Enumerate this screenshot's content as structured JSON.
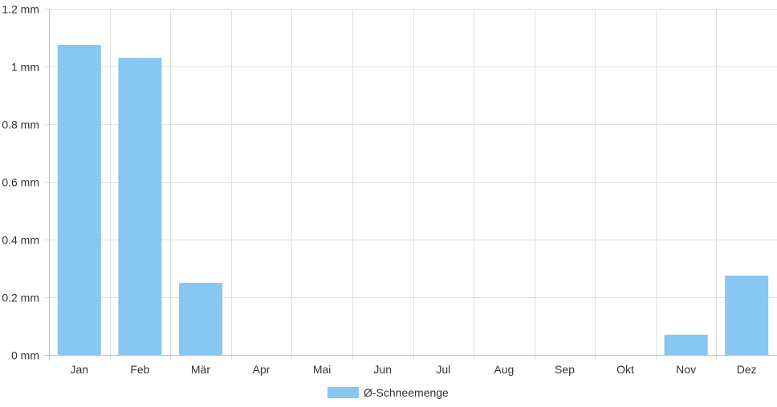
{
  "chart_data": {
    "type": "bar",
    "categories": [
      "Jan",
      "Feb",
      "Mär",
      "Apr",
      "Mai",
      "Jun",
      "Jul",
      "Aug",
      "Sep",
      "Okt",
      "Nov",
      "Dez"
    ],
    "series": [
      {
        "name": "Ø-Schneemenge",
        "values": [
          1.075,
          1.03,
          0.25,
          0,
          0,
          0,
          0,
          0,
          0,
          0,
          0.07,
          0.275
        ],
        "color": "#87c7f1"
      }
    ],
    "y_ticks": [
      "0 mm",
      "0.2 mm",
      "0.4 mm",
      "0.6 mm",
      "0.8 mm",
      "1 mm",
      "1.2 mm"
    ],
    "ylim": [
      0,
      1.2
    ],
    "y_unit": "mm",
    "grid": true,
    "legend_position": "bottom",
    "grid_color": "#e0e0e0",
    "axis_color": "#bdbdbd"
  }
}
